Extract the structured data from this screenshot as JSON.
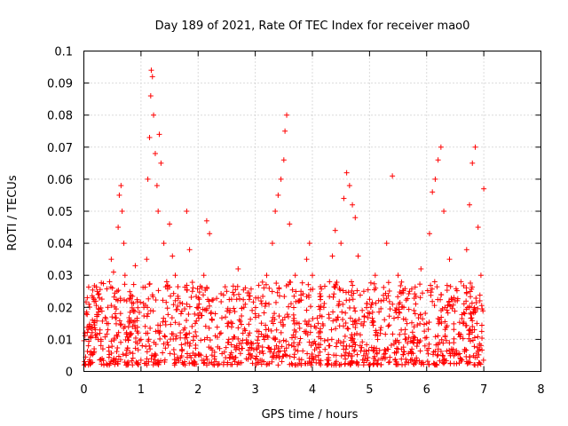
{
  "chart_data": {
    "type": "scatter",
    "title": "Day 189 of 2021, Rate Of TEC Index for receiver mao0",
    "xlabel": "GPS time / hours",
    "ylabel": "ROTI / TECUs",
    "xlim": [
      0,
      8
    ],
    "ylim": [
      0,
      0.1
    ],
    "xticks": [
      0,
      1,
      2,
      3,
      4,
      5,
      6,
      7,
      8
    ],
    "xtick_labels": [
      "0",
      "1",
      "2",
      "3",
      "4",
      "5",
      "6",
      "7",
      "8"
    ],
    "yticks": [
      0,
      0.01,
      0.02,
      0.03,
      0.04,
      0.05,
      0.06,
      0.07,
      0.08,
      0.09,
      0.1
    ],
    "ytick_labels": [
      "0",
      "0.01",
      "0.02",
      "0.03",
      "0.04",
      "0.05",
      "0.06",
      "0.07",
      "0.08",
      "0.09",
      "0.1"
    ],
    "grid": true,
    "marker": "+",
    "series_color": "#ff0000",
    "series": [
      {
        "name": "ROTI",
        "x": [
          0.02,
          0.04,
          0.06,
          0.08,
          0.1,
          0.12,
          0.15,
          0.2,
          0.25,
          0.3,
          0.32,
          0.35,
          0.4,
          0.42,
          0.45,
          0.48,
          0.5,
          0.52,
          0.55,
          0.58,
          0.6,
          0.62,
          0.65,
          0.67,
          0.7,
          0.72,
          0.75,
          0.8,
          0.85,
          0.9,
          0.95,
          1.0,
          1.05,
          1.1,
          1.12,
          1.15,
          1.17,
          1.18,
          1.2,
          1.22,
          1.25,
          1.28,
          1.3,
          1.32,
          1.35,
          1.4,
          1.45,
          1.5,
          1.55,
          1.6,
          1.7,
          1.8,
          1.85,
          1.9,
          1.95,
          2.0,
          2.1,
          2.15,
          2.2,
          2.3,
          2.4,
          2.5,
          2.6,
          2.7,
          2.8,
          2.9,
          3.0,
          3.1,
          3.2,
          3.3,
          3.35,
          3.4,
          3.45,
          3.5,
          3.52,
          3.55,
          3.6,
          3.7,
          3.8,
          3.9,
          3.95,
          4.0,
          4.1,
          4.2,
          4.3,
          4.35,
          4.4,
          4.5,
          4.55,
          4.6,
          4.65,
          4.7,
          4.75,
          4.8,
          4.9,
          5.0,
          5.1,
          5.2,
          5.3,
          5.4,
          5.5,
          5.6,
          5.7,
          5.8,
          5.9,
          6.0,
          6.05,
          6.1,
          6.15,
          6.2,
          6.25,
          6.3,
          6.4,
          6.5,
          6.6,
          6.7,
          6.75,
          6.8,
          6.85,
          6.9,
          6.95,
          7.0
        ],
        "y": [
          0.012,
          0.018,
          0.023,
          0.008,
          0.014,
          0.011,
          0.016,
          0.013,
          0.024,
          0.01,
          0.004,
          0.002,
          0.015,
          0.02,
          0.028,
          0.035,
          0.026,
          0.031,
          0.018,
          0.025,
          0.045,
          0.055,
          0.058,
          0.05,
          0.04,
          0.03,
          0.022,
          0.016,
          0.014,
          0.033,
          0.012,
          0.01,
          0.02,
          0.035,
          0.06,
          0.073,
          0.086,
          0.094,
          0.092,
          0.08,
          0.068,
          0.058,
          0.05,
          0.074,
          0.065,
          0.04,
          0.028,
          0.046,
          0.036,
          0.03,
          0.018,
          0.05,
          0.038,
          0.025,
          0.015,
          0.02,
          0.03,
          0.047,
          0.043,
          0.018,
          0.012,
          0.025,
          0.015,
          0.032,
          0.02,
          0.012,
          0.018,
          0.022,
          0.03,
          0.04,
          0.05,
          0.055,
          0.06,
          0.066,
          0.075,
          0.08,
          0.046,
          0.03,
          0.025,
          0.035,
          0.04,
          0.03,
          0.015,
          0.02,
          0.028,
          0.036,
          0.044,
          0.04,
          0.054,
          0.062,
          0.058,
          0.052,
          0.048,
          0.036,
          0.025,
          0.018,
          0.03,
          0.022,
          0.04,
          0.061,
          0.03,
          0.02,
          0.025,
          0.018,
          0.032,
          0.015,
          0.043,
          0.056,
          0.06,
          0.066,
          0.07,
          0.05,
          0.035,
          0.022,
          0.028,
          0.038,
          0.052,
          0.065,
          0.07,
          0.045,
          0.03,
          0.057
        ],
        "background_band": {
          "x_range": [
            0,
            7.0
          ],
          "y_min": 0.002,
          "y_max": 0.028,
          "note": "dense cloud of ROTI samples between roughly 0.005 and 0.025 TECU/min across the whole observation period"
        }
      }
    ]
  }
}
